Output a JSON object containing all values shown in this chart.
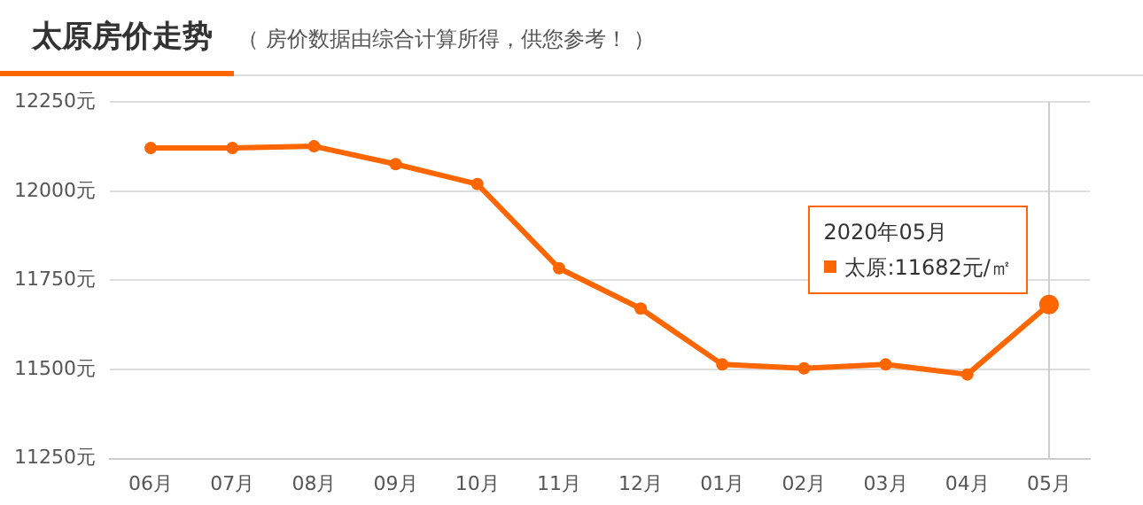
{
  "chart_data": {
    "type": "line",
    "title": "太原房价走势",
    "subtitle": "（ 房价数据由综合计算所得，供您参考！ ）",
    "categories": [
      "06月",
      "07月",
      "08月",
      "09月",
      "10月",
      "11月",
      "12月",
      "01月",
      "02月",
      "03月",
      "04月",
      "05月"
    ],
    "series": [
      {
        "name": "太原",
        "color": "#ff6600",
        "values": [
          12121,
          12121,
          12126,
          12076,
          12020,
          11784,
          11671,
          11514,
          11503,
          11514,
          11486,
          11682
        ]
      }
    ],
    "ylim": [
      11250,
      12250
    ],
    "yticks": [
      {
        "value": 11250,
        "label": "11250元"
      },
      {
        "value": 11500,
        "label": "11500元"
      },
      {
        "value": 11750,
        "label": "11750元"
      },
      {
        "value": 12000,
        "label": "12000元"
      },
      {
        "value": 12250,
        "label": "12250元"
      }
    ],
    "grid": "y",
    "marker": "circle",
    "line_style": "solid",
    "legend": "right",
    "ref_lines": [
      {
        "axis": "x",
        "value": "05月",
        "color": "#cccccc"
      }
    ],
    "annotations": [
      "2020年05月",
      {
        "text": ":11682元/㎡",
        "x": "05月",
        "y": 11682
      }
    ]
  }
}
